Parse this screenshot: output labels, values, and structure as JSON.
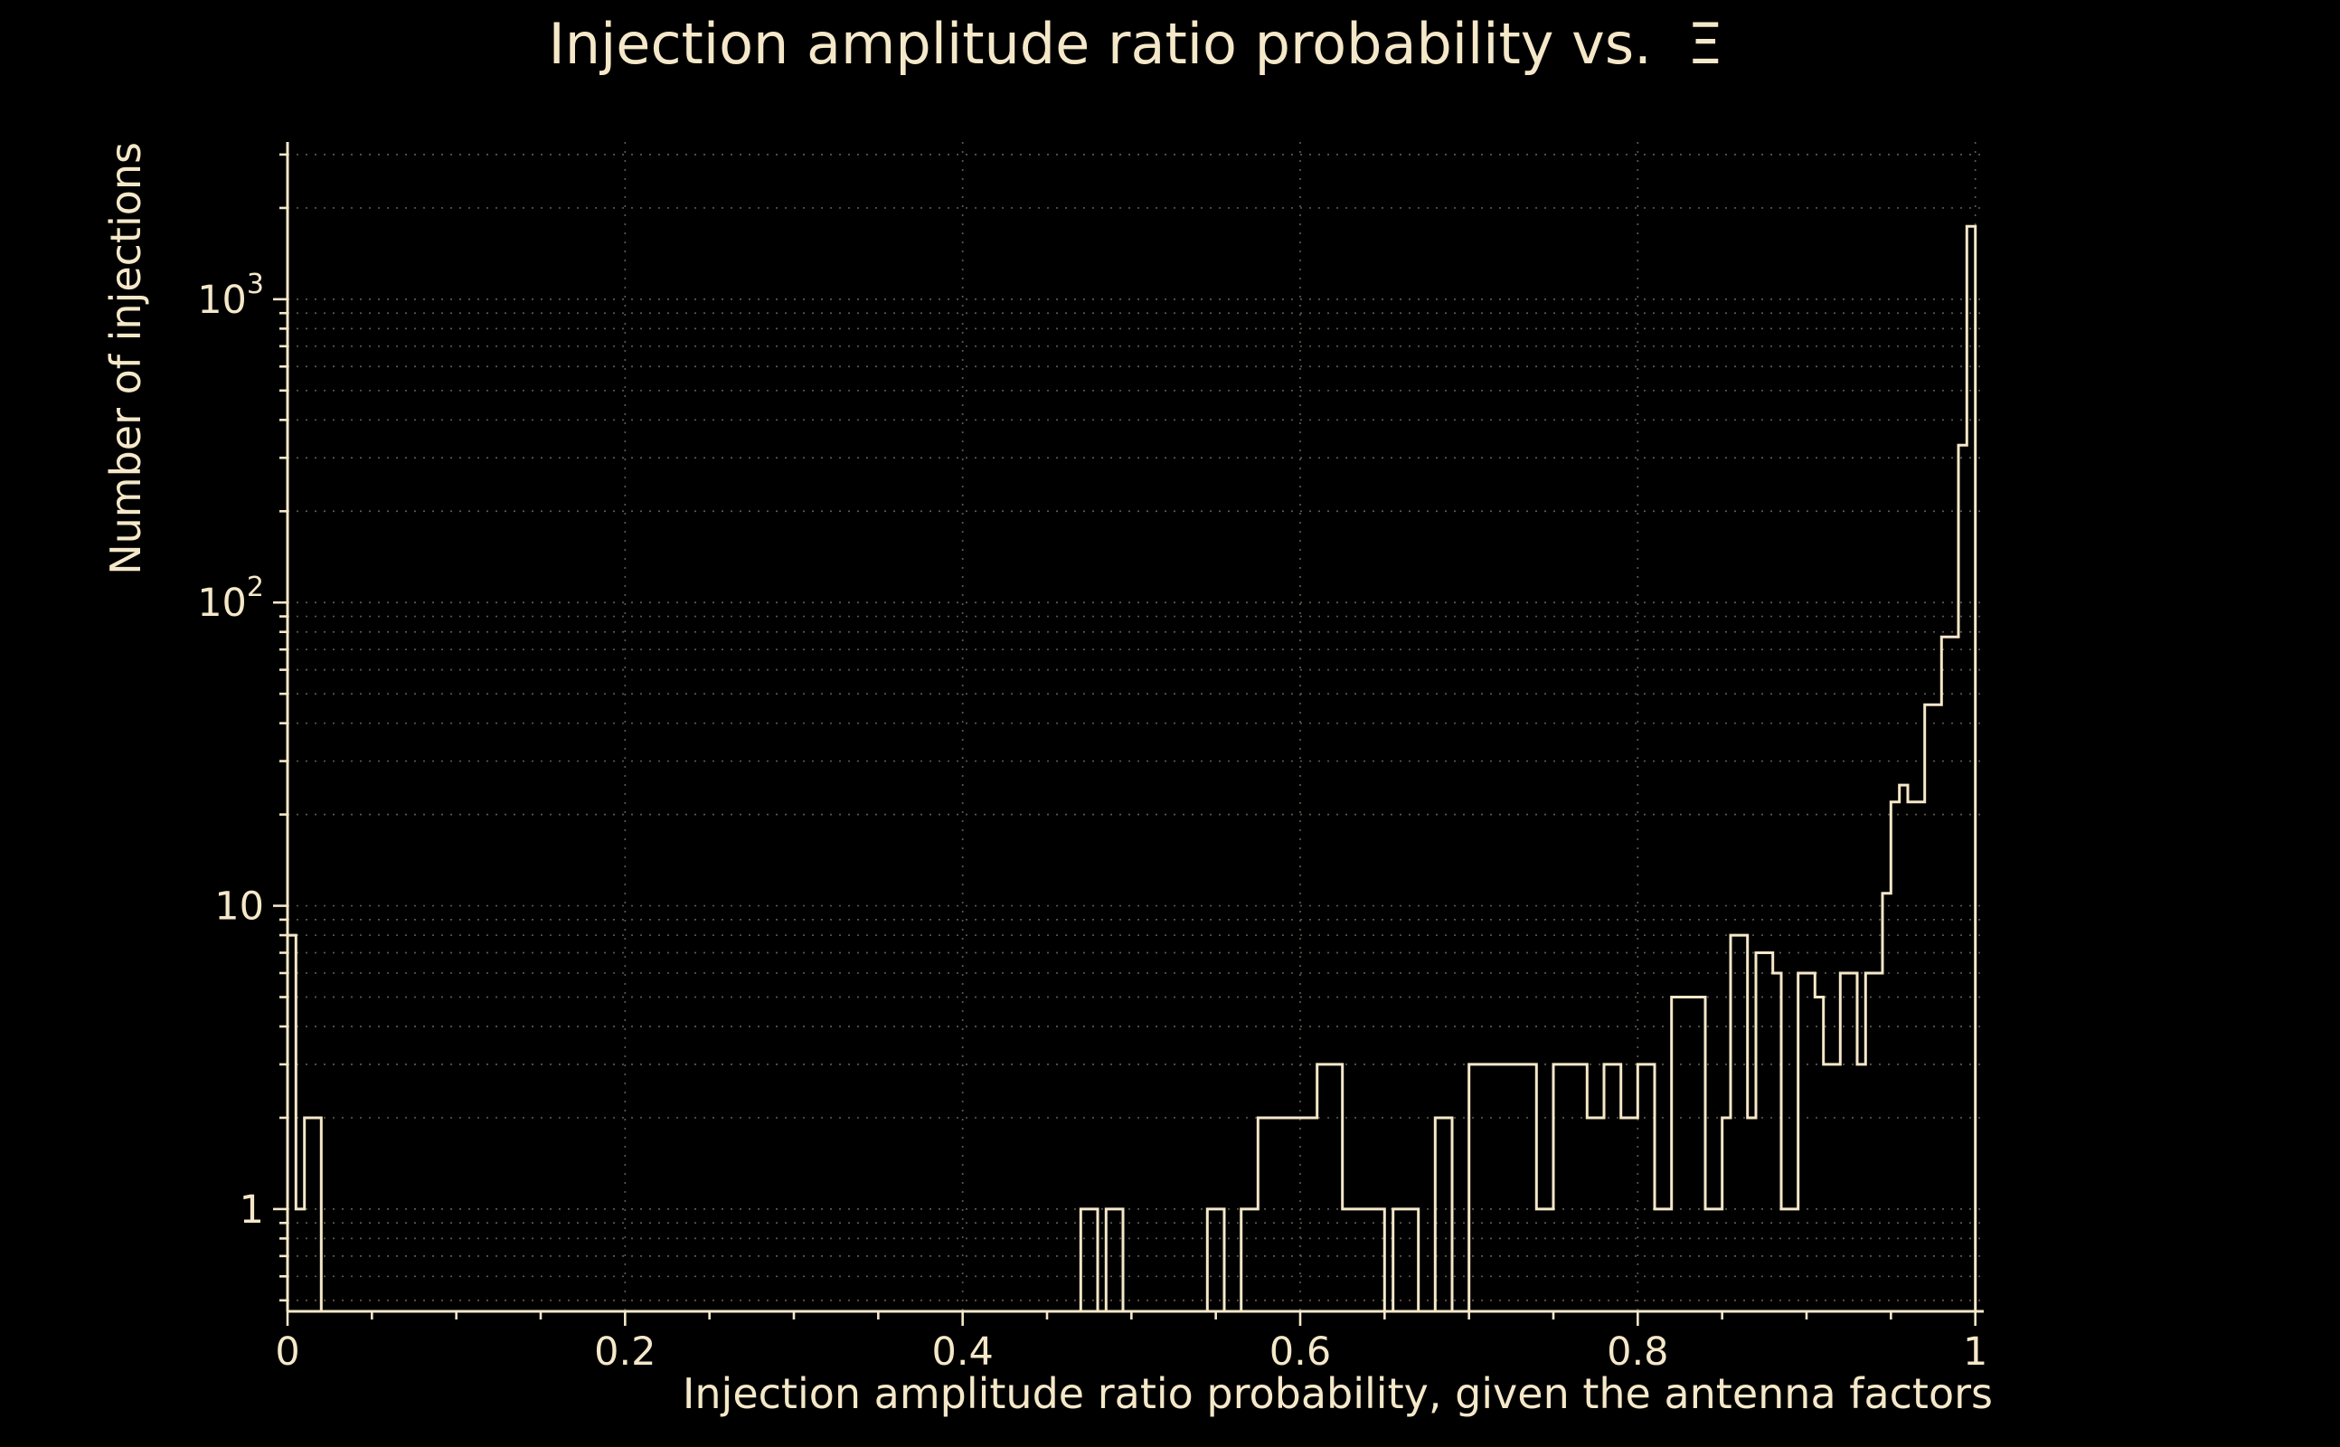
{
  "chart_data": {
    "type": "bar",
    "subtype": "step-histogram",
    "title": "Injection amplitude ratio probability vs.  Ξ",
    "xlabel": "Injection amplitude ratio probability, given the antenna factors",
    "ylabel": "Number of injections",
    "xlim": [
      0,
      1.005
    ],
    "ylim": [
      0.46,
      3300
    ],
    "yscale": "log",
    "grid": true,
    "legend": "none",
    "bin_width": 0.005,
    "bins": [
      [
        0.0,
        8
      ],
      [
        0.005,
        1
      ],
      [
        0.01,
        2
      ],
      [
        0.015,
        2
      ],
      [
        0.47,
        1
      ],
      [
        0.475,
        1
      ],
      [
        0.485,
        1
      ],
      [
        0.49,
        1
      ],
      [
        0.545,
        1
      ],
      [
        0.55,
        1
      ],
      [
        0.565,
        1
      ],
      [
        0.57,
        1
      ],
      [
        0.575,
        2
      ],
      [
        0.58,
        2
      ],
      [
        0.585,
        2
      ],
      [
        0.59,
        2
      ],
      [
        0.595,
        2
      ],
      [
        0.6,
        2
      ],
      [
        0.605,
        2
      ],
      [
        0.61,
        3
      ],
      [
        0.615,
        3
      ],
      [
        0.62,
        3
      ],
      [
        0.625,
        1
      ],
      [
        0.63,
        1
      ],
      [
        0.635,
        1
      ],
      [
        0.64,
        1
      ],
      [
        0.645,
        1
      ],
      [
        0.655,
        1
      ],
      [
        0.66,
        1
      ],
      [
        0.665,
        1
      ],
      [
        0.68,
        2
      ],
      [
        0.685,
        2
      ],
      [
        0.7,
        3
      ],
      [
        0.705,
        3
      ],
      [
        0.71,
        3
      ],
      [
        0.715,
        3
      ],
      [
        0.72,
        3
      ],
      [
        0.725,
        3
      ],
      [
        0.73,
        3
      ],
      [
        0.735,
        3
      ],
      [
        0.74,
        1
      ],
      [
        0.745,
        1
      ],
      [
        0.75,
        3
      ],
      [
        0.755,
        3
      ],
      [
        0.76,
        3
      ],
      [
        0.765,
        3
      ],
      [
        0.77,
        2
      ],
      [
        0.775,
        2
      ],
      [
        0.78,
        3
      ],
      [
        0.785,
        3
      ],
      [
        0.79,
        2
      ],
      [
        0.795,
        2
      ],
      [
        0.8,
        3
      ],
      [
        0.805,
        3
      ],
      [
        0.81,
        1
      ],
      [
        0.815,
        1
      ],
      [
        0.82,
        5
      ],
      [
        0.825,
        5
      ],
      [
        0.83,
        5
      ],
      [
        0.835,
        5
      ],
      [
        0.84,
        1
      ],
      [
        0.845,
        1
      ],
      [
        0.85,
        2
      ],
      [
        0.855,
        8
      ],
      [
        0.86,
        8
      ],
      [
        0.865,
        2
      ],
      [
        0.87,
        7
      ],
      [
        0.875,
        7
      ],
      [
        0.88,
        6
      ],
      [
        0.885,
        1
      ],
      [
        0.89,
        1
      ],
      [
        0.895,
        6
      ],
      [
        0.9,
        6
      ],
      [
        0.905,
        5
      ],
      [
        0.91,
        3
      ],
      [
        0.915,
        3
      ],
      [
        0.92,
        6
      ],
      [
        0.925,
        6
      ],
      [
        0.93,
        3
      ],
      [
        0.935,
        6
      ],
      [
        0.94,
        6
      ],
      [
        0.945,
        11
      ],
      [
        0.95,
        22
      ],
      [
        0.955,
        25
      ],
      [
        0.96,
        22
      ],
      [
        0.965,
        22
      ],
      [
        0.97,
        46
      ],
      [
        0.975,
        46
      ],
      [
        0.98,
        77
      ],
      [
        0.985,
        77
      ],
      [
        0.99,
        330
      ],
      [
        0.995,
        1740
      ]
    ],
    "xticks": [
      {
        "v": 0,
        "label": "0"
      },
      {
        "v": 0.2,
        "label": "0.2"
      },
      {
        "v": 0.4,
        "label": "0.4"
      },
      {
        "v": 0.6,
        "label": "0.6"
      },
      {
        "v": 0.8,
        "label": "0.8"
      },
      {
        "v": 1,
        "label": "1"
      }
    ],
    "xticks_minor": [
      0.05,
      0.1,
      0.15,
      0.25,
      0.3,
      0.35,
      0.45,
      0.5,
      0.55,
      0.65,
      0.7,
      0.75,
      0.85,
      0.9,
      0.95
    ],
    "xgrid": [
      0.2,
      0.4,
      0.6,
      0.8,
      1.0
    ],
    "yticks": [
      {
        "v": 1,
        "label": "1",
        "exp": ""
      },
      {
        "v": 10,
        "label": "10",
        "exp": ""
      },
      {
        "v": 100,
        "label": "10",
        "exp": "2"
      },
      {
        "v": 1000,
        "label": "10",
        "exp": "3"
      }
    ],
    "yticks_minor": [
      0.5,
      0.6,
      0.7,
      0.8,
      0.9,
      2,
      3,
      4,
      5,
      6,
      7,
      8,
      9,
      20,
      30,
      40,
      50,
      60,
      70,
      80,
      90,
      200,
      300,
      400,
      500,
      600,
      700,
      800,
      900,
      2000,
      3000
    ],
    "style": {
      "background": "#000000",
      "foreground": "#f5e8c9",
      "grid_color": "#5a594e",
      "line_width": 3
    }
  }
}
